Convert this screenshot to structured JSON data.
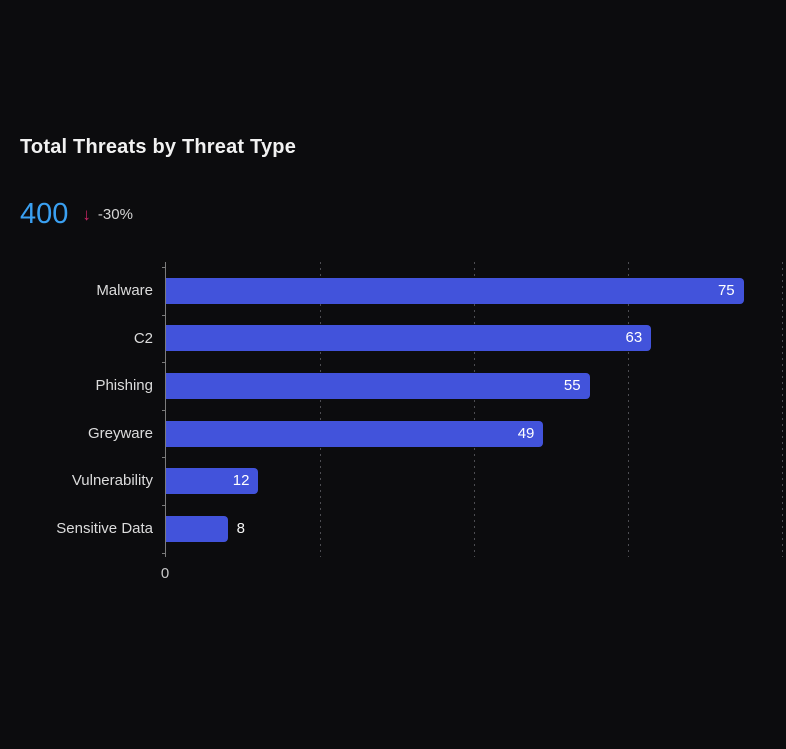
{
  "card": {
    "title": "Total Threats by Threat Type",
    "stat": {
      "value": "400",
      "trend_icon": "arrow-down",
      "trend_arrow_glyph": "↓",
      "trend_text": "-30%"
    }
  },
  "colors": {
    "background": "#0c0c0e",
    "title_text": "#f1f1f1",
    "stat_value": "#3aa0f1",
    "trend_accent": "#c92465",
    "trend_text": "#d5d5d5",
    "bar_fill": "#4253db",
    "bar_value_text": "#ffffff",
    "category_text": "#dcdcdc",
    "axis_line": "#7b7b7b",
    "gridline": "#4d4d52",
    "tick_label": "#c9c9c9"
  },
  "chart_data": {
    "type": "bar",
    "orientation": "horizontal",
    "title": "Total Threats by Threat Type",
    "categories": [
      "Malware",
      "C2",
      "Phishing",
      "Greyware",
      "Vulnerability",
      "Sensitive Data"
    ],
    "values": [
      75,
      63,
      55,
      49,
      12,
      8
    ],
    "xlabel": "",
    "ylabel": "",
    "xlim": [
      0,
      80.5
    ],
    "x_gridline_values": [
      20,
      40,
      60,
      80
    ],
    "x_tick_labels_shown": [
      "0"
    ],
    "grid": "dotted-vertical",
    "legend": "none",
    "value_labels": "end-of-bar"
  }
}
